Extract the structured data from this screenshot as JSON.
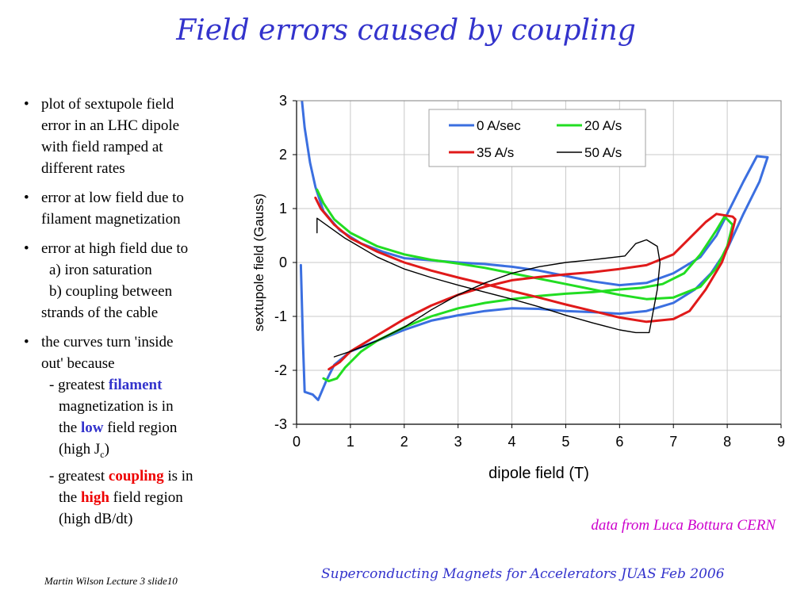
{
  "slide": {
    "title": "Field errors caused by coupling",
    "bullets": {
      "b1": [
        "plot of sextupole field",
        "error in an LHC dipole",
        "with field ramped at",
        "different rates"
      ],
      "b2": [
        "error at low field due to",
        "filament magnetization"
      ],
      "b3": {
        "lines": [
          "error at high field due to",
          "a) iron saturation",
          "b) coupling between",
          "strands of the cable"
        ]
      },
      "b4": {
        "l1": "the curves turn 'inside",
        "l2": "out' because",
        "l3_pre": "- greatest ",
        "l3_hl": "filament",
        "l4": "magnetization is in",
        "l5_pre": "the ",
        "l5_hl": "low",
        "l5_post": " field region",
        "l6_pre": "(high J",
        "l6_sub": "c",
        "l6_post": ")",
        "l7_pre": "- greatest ",
        "l7_hl": "coupling",
        "l7_post": " is in",
        "l8_pre": "the ",
        "l8_hl": "high",
        "l8_post": " field region",
        "l9": "(high dB/dt)"
      }
    },
    "credit": "data from Luca Bottura CERN",
    "footer_left": "Martin Wilson Lecture 3 slide10",
    "footer_right": "Superconducting Magnets for Accelerators JUAS Feb 2006"
  },
  "chart_data": {
    "type": "line",
    "title": "",
    "xlabel": "dipole field (T)",
    "ylabel": "sextupole field (Gauss)",
    "xlim": [
      0,
      9
    ],
    "ylim": [
      -3,
      3
    ],
    "xticks": [
      "0",
      "1",
      "2",
      "3",
      "4",
      "5",
      "6",
      "7",
      "8",
      "9"
    ],
    "yticks": [
      "3",
      "2",
      "1",
      "0",
      "-1",
      "-2",
      "-3"
    ],
    "grid": true,
    "legend_position": "top-right",
    "series": [
      {
        "name": "0 A/sec",
        "color": "#3b6fe0",
        "stroke": 3,
        "points": [
          [
            0.1,
            3.0
          ],
          [
            0.15,
            2.5
          ],
          [
            0.25,
            1.85
          ],
          [
            0.35,
            1.4
          ],
          [
            0.5,
            0.95
          ],
          [
            0.8,
            0.6
          ],
          [
            1.2,
            0.35
          ],
          [
            1.6,
            0.2
          ],
          [
            2.0,
            0.08
          ],
          [
            2.5,
            0.04
          ],
          [
            3.0,
            0.0
          ],
          [
            3.5,
            -0.03
          ],
          [
            4.0,
            -0.08
          ],
          [
            4.5,
            -0.15
          ],
          [
            5.0,
            -0.25
          ],
          [
            5.5,
            -0.35
          ],
          [
            6.0,
            -0.42
          ],
          [
            6.5,
            -0.38
          ],
          [
            7.0,
            -0.2
          ],
          [
            7.5,
            0.1
          ],
          [
            7.8,
            0.5
          ],
          [
            8.1,
            1.1
          ],
          [
            8.3,
            1.5
          ],
          [
            8.55,
            1.97
          ],
          [
            8.75,
            1.95
          ],
          [
            8.6,
            1.5
          ],
          [
            8.3,
            0.9
          ],
          [
            8.0,
            0.25
          ],
          [
            7.7,
            -0.2
          ],
          [
            7.4,
            -0.5
          ],
          [
            7.0,
            -0.75
          ],
          [
            6.5,
            -0.9
          ],
          [
            6.0,
            -0.95
          ],
          [
            5.5,
            -0.92
          ],
          [
            5.0,
            -0.9
          ],
          [
            4.5,
            -0.86
          ],
          [
            4.0,
            -0.85
          ],
          [
            3.5,
            -0.9
          ],
          [
            3.0,
            -0.98
          ],
          [
            2.5,
            -1.08
          ],
          [
            2.0,
            -1.25
          ],
          [
            1.5,
            -1.45
          ],
          [
            1.0,
            -1.65
          ],
          [
            0.7,
            -1.9
          ],
          [
            0.55,
            -2.2
          ],
          [
            0.4,
            -2.55
          ],
          [
            0.3,
            -2.45
          ],
          [
            0.15,
            -2.4
          ],
          [
            0.12,
            -1.5
          ],
          [
            0.08,
            -0.05
          ]
        ]
      },
      {
        "name": "20 A/s",
        "color": "#22dd22",
        "stroke": 3,
        "points": [
          [
            0.38,
            1.35
          ],
          [
            0.5,
            1.1
          ],
          [
            0.7,
            0.8
          ],
          [
            1.0,
            0.55
          ],
          [
            1.5,
            0.3
          ],
          [
            2.0,
            0.15
          ],
          [
            2.5,
            0.05
          ],
          [
            3.0,
            -0.02
          ],
          [
            3.5,
            -0.1
          ],
          [
            4.0,
            -0.2
          ],
          [
            4.5,
            -0.3
          ],
          [
            5.0,
            -0.4
          ],
          [
            5.5,
            -0.5
          ],
          [
            6.0,
            -0.6
          ],
          [
            6.5,
            -0.68
          ],
          [
            7.0,
            -0.65
          ],
          [
            7.5,
            -0.45
          ],
          [
            7.8,
            -0.1
          ],
          [
            8.0,
            0.3
          ],
          [
            8.1,
            0.7
          ],
          [
            7.95,
            0.85
          ],
          [
            7.8,
            0.6
          ],
          [
            7.5,
            0.15
          ],
          [
            7.2,
            -0.2
          ],
          [
            6.8,
            -0.4
          ],
          [
            6.4,
            -0.47
          ],
          [
            6.0,
            -0.5
          ],
          [
            5.5,
            -0.55
          ],
          [
            5.0,
            -0.58
          ],
          [
            4.5,
            -0.62
          ],
          [
            4.0,
            -0.68
          ],
          [
            3.5,
            -0.75
          ],
          [
            3.0,
            -0.85
          ],
          [
            2.5,
            -1.0
          ],
          [
            2.0,
            -1.2
          ],
          [
            1.5,
            -1.45
          ],
          [
            1.2,
            -1.65
          ],
          [
            0.9,
            -1.95
          ],
          [
            0.75,
            -2.15
          ],
          [
            0.6,
            -2.2
          ],
          [
            0.5,
            -2.15
          ]
        ]
      },
      {
        "name": "35 A/s",
        "color": "#e01a1a",
        "stroke": 3,
        "points": [
          [
            0.35,
            1.2
          ],
          [
            0.45,
            1.0
          ],
          [
            0.7,
            0.7
          ],
          [
            1.0,
            0.45
          ],
          [
            1.5,
            0.2
          ],
          [
            2.0,
            0.0
          ],
          [
            2.5,
            -0.15
          ],
          [
            3.0,
            -0.28
          ],
          [
            3.5,
            -0.4
          ],
          [
            4.0,
            -0.53
          ],
          [
            4.5,
            -0.65
          ],
          [
            5.0,
            -0.78
          ],
          [
            5.5,
            -0.9
          ],
          [
            6.0,
            -1.02
          ],
          [
            6.5,
            -1.1
          ],
          [
            7.0,
            -1.05
          ],
          [
            7.3,
            -0.9
          ],
          [
            7.6,
            -0.5
          ],
          [
            7.9,
            0.0
          ],
          [
            8.05,
            0.4
          ],
          [
            8.15,
            0.8
          ],
          [
            8.1,
            0.85
          ],
          [
            7.8,
            0.9
          ],
          [
            7.6,
            0.75
          ],
          [
            7.3,
            0.45
          ],
          [
            7.0,
            0.15
          ],
          [
            6.5,
            -0.05
          ],
          [
            6.0,
            -0.12
          ],
          [
            5.5,
            -0.18
          ],
          [
            5.0,
            -0.22
          ],
          [
            4.5,
            -0.27
          ],
          [
            4.0,
            -0.33
          ],
          [
            3.5,
            -0.45
          ],
          [
            3.0,
            -0.6
          ],
          [
            2.5,
            -0.8
          ],
          [
            2.0,
            -1.05
          ],
          [
            1.5,
            -1.35
          ],
          [
            1.0,
            -1.65
          ],
          [
            0.8,
            -1.85
          ],
          [
            0.6,
            -1.98
          ]
        ]
      },
      {
        "name": "50 A/s",
        "color": "#000000",
        "stroke": 1.4,
        "points": [
          [
            0.38,
            0.55
          ],
          [
            0.38,
            0.82
          ],
          [
            0.55,
            0.7
          ],
          [
            0.9,
            0.45
          ],
          [
            1.5,
            0.1
          ],
          [
            2.0,
            -0.12
          ],
          [
            2.5,
            -0.28
          ],
          [
            3.0,
            -0.42
          ],
          [
            3.5,
            -0.55
          ],
          [
            4.0,
            -0.68
          ],
          [
            4.5,
            -0.82
          ],
          [
            5.0,
            -0.98
          ],
          [
            5.5,
            -1.12
          ],
          [
            6.0,
            -1.25
          ],
          [
            6.3,
            -1.3
          ],
          [
            6.55,
            -1.3
          ],
          [
            6.7,
            -0.5
          ],
          [
            6.75,
            0.0
          ],
          [
            6.7,
            0.3
          ],
          [
            6.5,
            0.42
          ],
          [
            6.3,
            0.35
          ],
          [
            6.1,
            0.12
          ],
          [
            5.5,
            0.05
          ],
          [
            5.0,
            0.0
          ],
          [
            4.5,
            -0.08
          ],
          [
            4.0,
            -0.2
          ],
          [
            3.5,
            -0.38
          ],
          [
            3.0,
            -0.6
          ],
          [
            2.5,
            -0.88
          ],
          [
            2.0,
            -1.2
          ],
          [
            1.5,
            -1.45
          ],
          [
            1.0,
            -1.65
          ],
          [
            0.7,
            -1.75
          ]
        ]
      }
    ]
  }
}
